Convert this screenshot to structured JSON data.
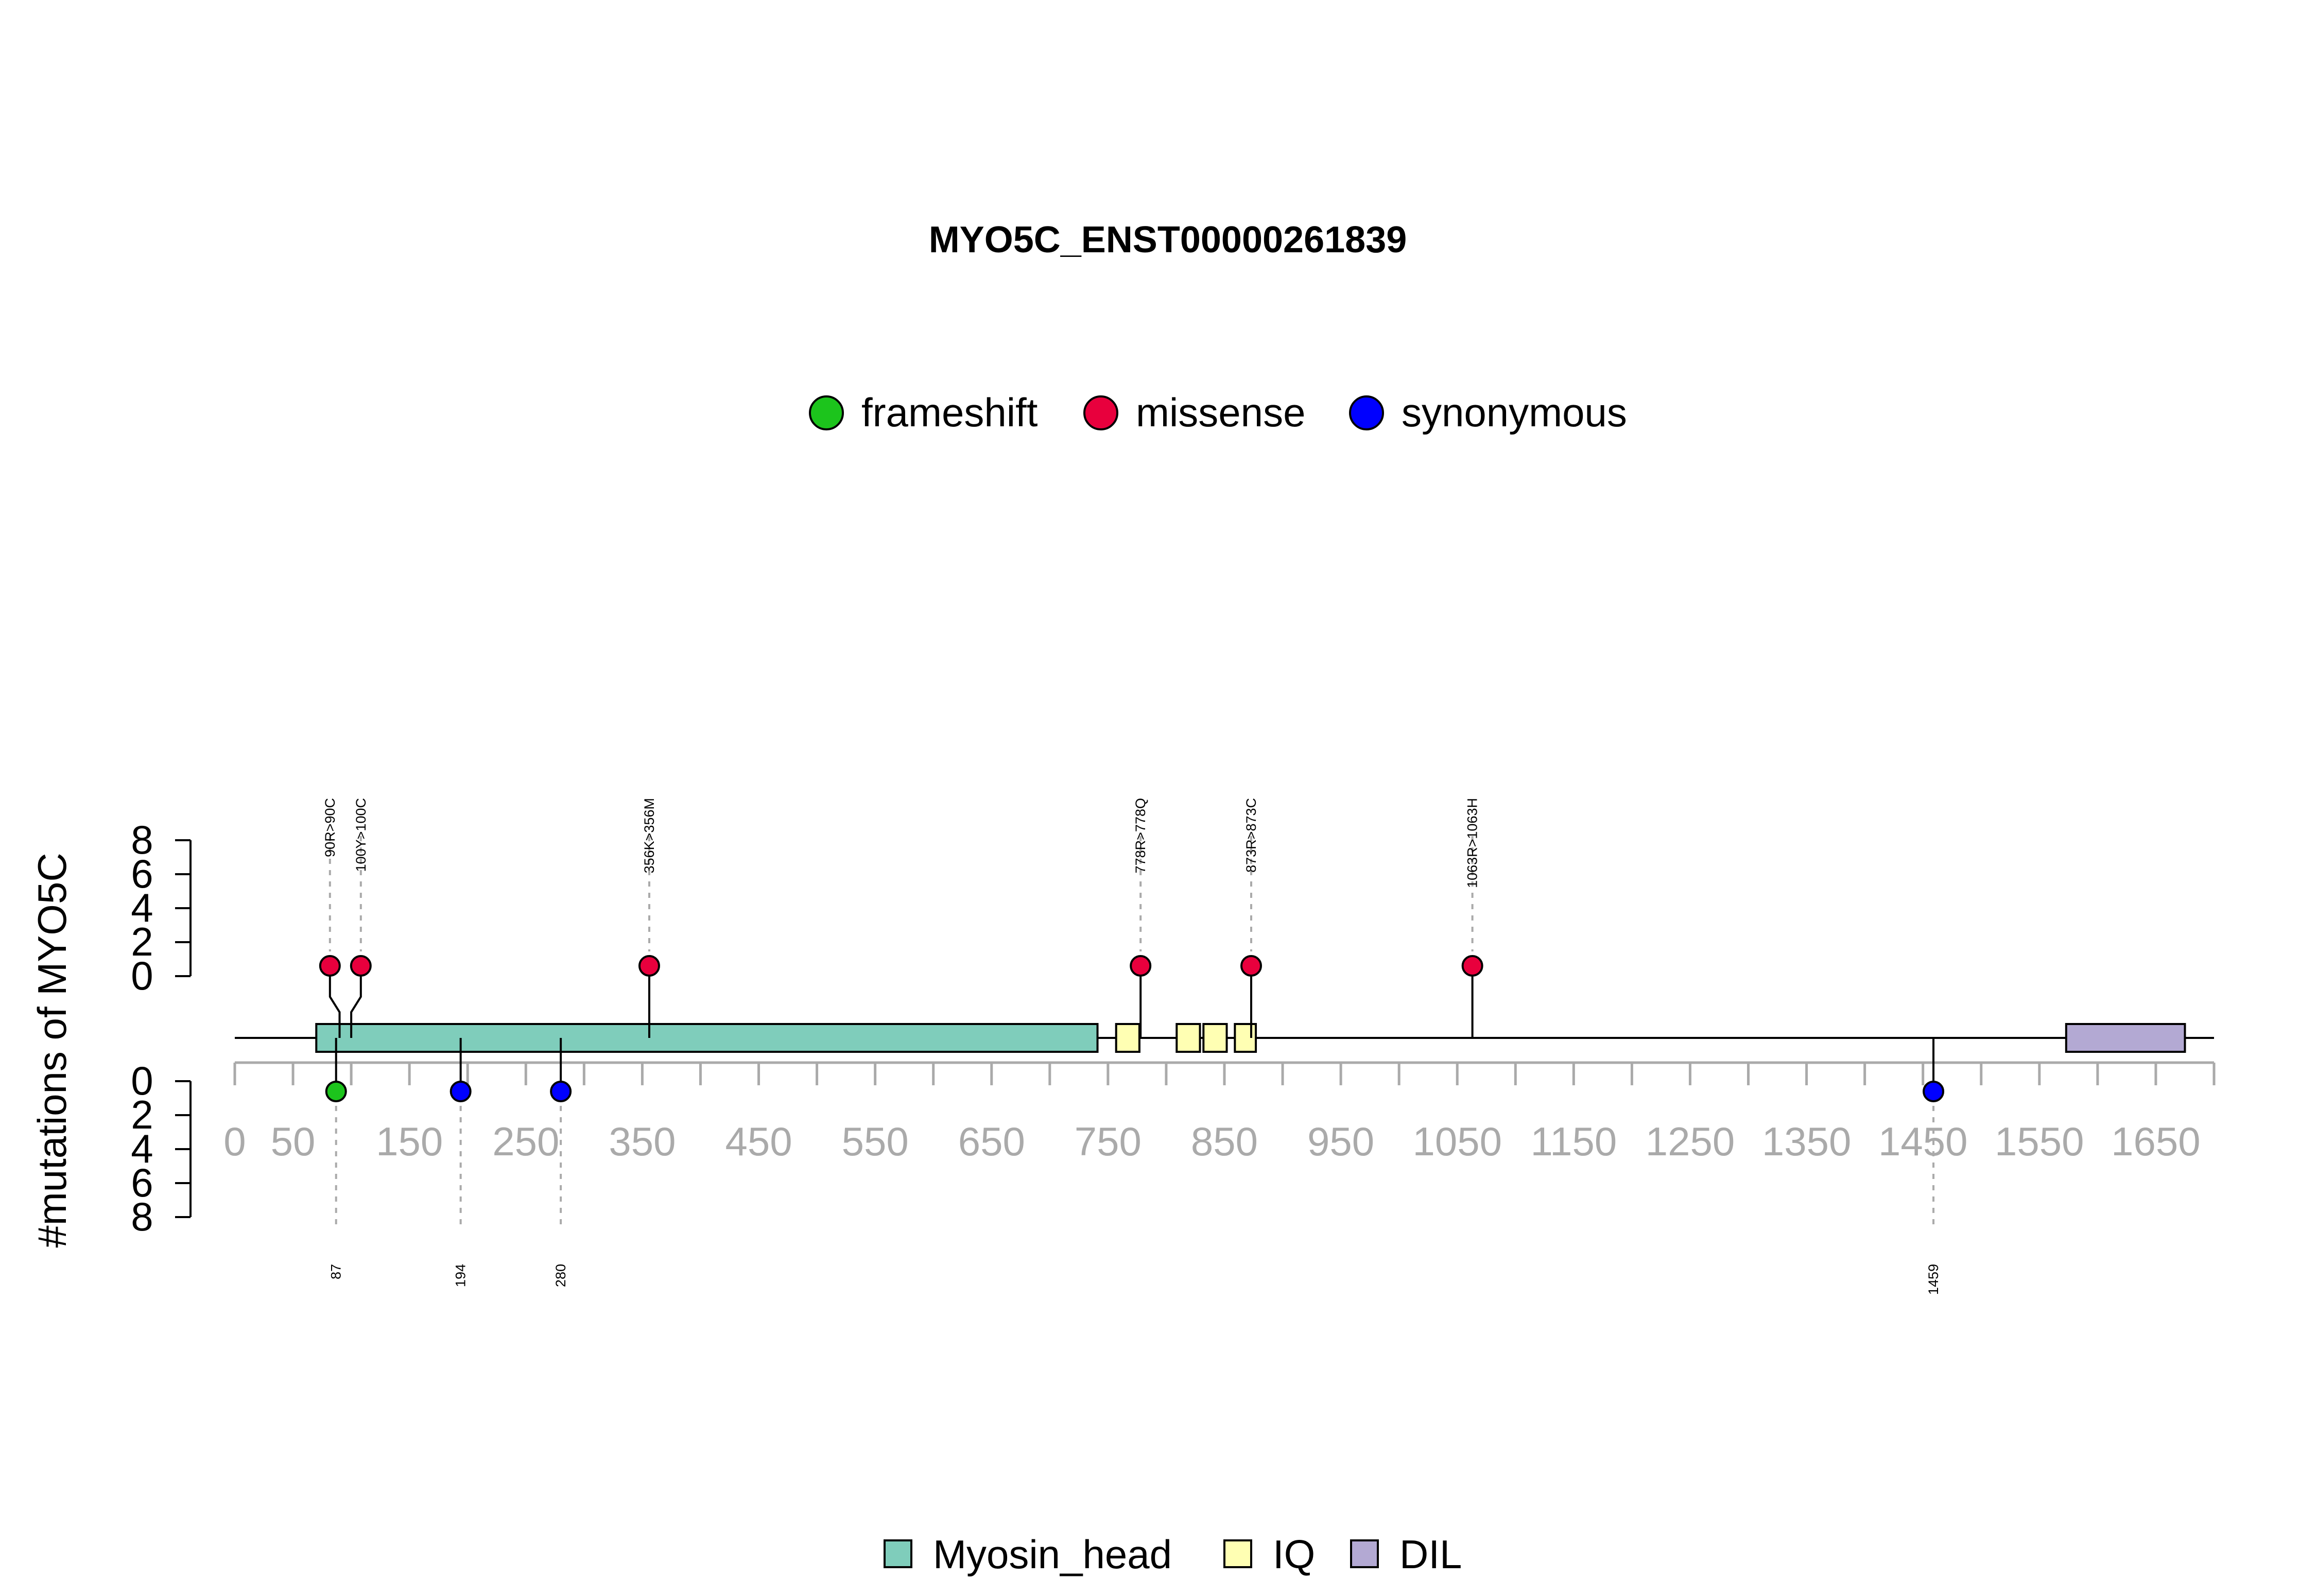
{
  "chart_data": {
    "type": "lollipop",
    "title": "MYO5C_ENST00000261839",
    "ylabel": "#mutations of MYO5C",
    "xlim": [
      0,
      1700
    ],
    "x_ticks": [
      0,
      50,
      150,
      250,
      350,
      450,
      550,
      650,
      750,
      850,
      950,
      1050,
      1150,
      1250,
      1350,
      1450,
      1550,
      1650
    ],
    "y_ticks": [
      0,
      2,
      4,
      6,
      8
    ],
    "ylim": [
      0,
      8
    ],
    "mutation_legend": {
      "placement": "top",
      "items": [
        {
          "label": "frameshift",
          "color": "#1cc41c"
        },
        {
          "label": "missense",
          "color": "#e8003d"
        },
        {
          "label": "synonymous",
          "color": "#0000ff"
        }
      ]
    },
    "domain_legend": {
      "placement": "bottom",
      "items": [
        {
          "label": "Myosin_head",
          "color": "#7fcdbb"
        },
        {
          "label": "IQ",
          "color": "#ffffb3"
        },
        {
          "label": "DIL",
          "color": "#b3a9d3"
        }
      ]
    },
    "domains": [
      {
        "name": "Myosin_head",
        "start": 70,
        "end": 741
      },
      {
        "name": "IQ",
        "start": 757,
        "end": 777
      },
      {
        "name": "IQ",
        "start": 809,
        "end": 829
      },
      {
        "name": "IQ",
        "start": 832,
        "end": 852
      },
      {
        "name": "IQ",
        "start": 859,
        "end": 877
      },
      {
        "name": "DIL",
        "start": 1573,
        "end": 1675
      }
    ],
    "mutations_top": [
      {
        "position": 90,
        "label": "90R>90C",
        "type": "missense",
        "count": 1
      },
      {
        "position": 100,
        "label": "100Y>100C",
        "type": "missense",
        "count": 1
      },
      {
        "position": 356,
        "label": "356K>356M",
        "type": "missense",
        "count": 1
      },
      {
        "position": 778,
        "label": "778R>778Q",
        "type": "missense",
        "count": 1
      },
      {
        "position": 873,
        "label": "873R>873C",
        "type": "missense",
        "count": 1
      },
      {
        "position": 1063,
        "label": "1063R>1063H",
        "type": "missense",
        "count": 1
      }
    ],
    "mutations_bottom": [
      {
        "position": 87,
        "label": "87",
        "type": "frameshift",
        "count": 1
      },
      {
        "position": 194,
        "label": "194",
        "type": "synonymous",
        "count": 1
      },
      {
        "position": 280,
        "label": "280",
        "type": "synonymous",
        "count": 1
      },
      {
        "position": 1459,
        "label": "1459",
        "type": "synonymous",
        "count": 1
      }
    ]
  }
}
